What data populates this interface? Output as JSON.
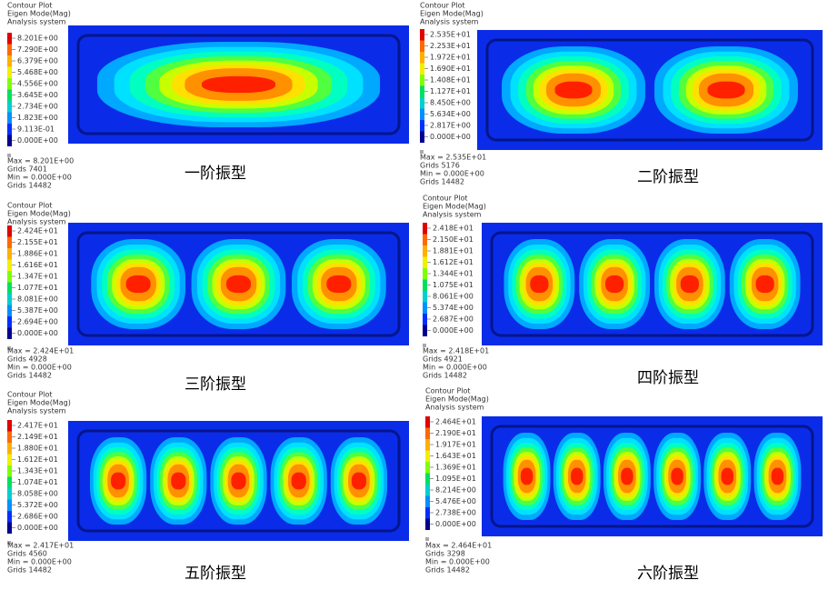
{
  "panels": [
    {
      "header": [
        "Contour Plot",
        "Eigen Mode(Mag)",
        "Analysis system"
      ],
      "legend": [
        "8.201E+00",
        "7.290E+00",
        "6.379E+00",
        "5.468E+00",
        "4.556E+00",
        "3.645E+00",
        "2.734E+00",
        "1.823E+00",
        "9.113E-01",
        "0.000E+00"
      ],
      "footer": [
        "Max = 8.201E+00",
        "Grids 7401",
        "Min = 0.000E+00",
        "Grids 14482"
      ],
      "caption": "一阶振型"
    },
    {
      "header": [
        "Contour Plot",
        "Eigen Mode(Mag)",
        "Analysis system"
      ],
      "legend": [
        "2.535E+01",
        "2.253E+01",
        "1.972E+01",
        "1.690E+01",
        "1.408E+01",
        "1.127E+01",
        "8.450E+00",
        "5.634E+00",
        "2.817E+00",
        "0.000E+00"
      ],
      "footer": [
        "Max = 2.535E+01",
        "Grids 5176",
        "Min = 0.000E+00",
        "Grids 14482"
      ],
      "caption": "二阶振型"
    },
    {
      "header": [
        "Contour Plot",
        "Eigen Mode(Mag)",
        "Analysis system"
      ],
      "legend": [
        "2.424E+01",
        "2.155E+01",
        "1.886E+01",
        "1.616E+01",
        "1.347E+01",
        "1.077E+01",
        "8.081E+00",
        "5.387E+00",
        "2.694E+00",
        "0.000E+00"
      ],
      "footer": [
        "Max = 2.424E+01",
        "Grids 4928",
        "Min = 0.000E+00",
        "Grids 14482"
      ],
      "caption": "三阶振型"
    },
    {
      "header": [
        "Contour Plot",
        "Eigen Mode(Mag)",
        "Analysis system"
      ],
      "legend": [
        "2.418E+01",
        "2.150E+01",
        "1.881E+01",
        "1.612E+01",
        "1.344E+01",
        "1.075E+01",
        "8.061E+00",
        "5.374E+00",
        "2.687E+00",
        "0.000E+00"
      ],
      "footer": [
        "Max = 2.418E+01",
        "Grids 4921",
        "Min = 0.000E+00",
        "Grids 14482"
      ],
      "caption": "四阶振型"
    },
    {
      "header": [
        "Contour Plot",
        "Eigen Mode(Mag)",
        "Analysis system"
      ],
      "legend": [
        "2.417E+01",
        "2.149E+01",
        "1.880E+01",
        "1.612E+01",
        "1.343E+01",
        "1.074E+01",
        "8.058E+00",
        "5.372E+00",
        "2.686E+00",
        "0.000E+00"
      ],
      "footer": [
        "Max = 2.417E+01",
        "Grids 4560",
        "Min = 0.000E+00",
        "Grids 14482"
      ],
      "caption": "五阶振型"
    },
    {
      "header": [
        "Contour Plot",
        "Eigen Mode(Mag)",
        "Analysis system"
      ],
      "legend": [
        "2.464E+01",
        "2.190E+01",
        "1.917E+01",
        "1.643E+01",
        "1.369E+01",
        "1.095E+01",
        "8.214E+00",
        "5.476E+00",
        "2.738E+00",
        "0.000E+00"
      ],
      "footer": [
        "Max = 2.464E+01",
        "Grids 3298",
        "Min = 0.000E+00",
        "Grids 14482"
      ],
      "caption": "六阶振型"
    }
  ]
}
